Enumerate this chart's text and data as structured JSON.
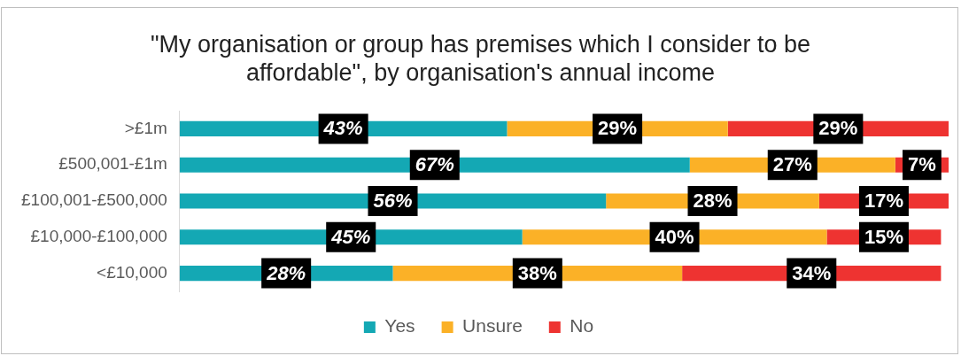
{
  "chart_data": {
    "type": "bar",
    "orientation": "horizontal",
    "stacked": true,
    "title": "\"My organisation or group has premises which I consider to be affordable\", by organisation's annual income",
    "categories": [
      ">£1m",
      "£500,001-£1m",
      "£100,001-£500,000",
      "£10,000-£100,000",
      "<£10,000"
    ],
    "series": [
      {
        "name": "Yes",
        "color": "#14a8b4",
        "values": [
          43,
          67,
          56,
          45,
          28
        ],
        "value_labels": [
          "43%",
          "67%",
          "56%",
          "45%",
          "28%"
        ]
      },
      {
        "name": "Unsure",
        "color": "#fbb127",
        "values": [
          29,
          27,
          28,
          40,
          38
        ],
        "value_labels": [
          "29%",
          "27%",
          "28%",
          "40%",
          "38%"
        ]
      },
      {
        "name": "No",
        "color": "#ee3331",
        "values": [
          29,
          7,
          17,
          15,
          34
        ],
        "value_labels": [
          "29%",
          "7%",
          "17%",
          "15%",
          "34%"
        ]
      }
    ],
    "legend": "bottom"
  }
}
